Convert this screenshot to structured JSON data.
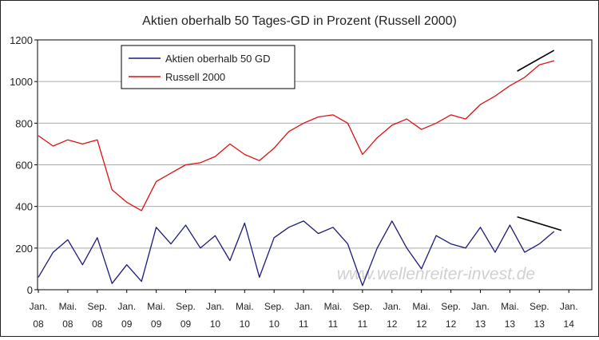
{
  "chart_data": {
    "type": "line",
    "title": "Aktien oberhalb 50 Tages-GD in Prozent (Russell 2000)",
    "xlabel": "",
    "ylabel": "",
    "ylim": [
      0,
      1200
    ],
    "yticks": [
      0,
      200,
      400,
      600,
      800,
      1000,
      1200
    ],
    "grid": true,
    "legend_position": "top-left",
    "watermark": "www.wellenreiter-invest.de",
    "x_ticks": [
      {
        "month": "Jan.",
        "year": "08"
      },
      {
        "month": "Mai.",
        "year": "08"
      },
      {
        "month": "Sep.",
        "year": "08"
      },
      {
        "month": "Jan.",
        "year": "09"
      },
      {
        "month": "Mai.",
        "year": "09"
      },
      {
        "month": "Sep.",
        "year": "09"
      },
      {
        "month": "Jan.",
        "year": "10"
      },
      {
        "month": "Mai.",
        "year": "10"
      },
      {
        "month": "Sep.",
        "year": "10"
      },
      {
        "month": "Jan.",
        "year": "11"
      },
      {
        "month": "Mai.",
        "year": "11"
      },
      {
        "month": "Sep.",
        "year": "11"
      },
      {
        "month": "Jan.",
        "year": "12"
      },
      {
        "month": "Mai.",
        "year": "12"
      },
      {
        "month": "Sep.",
        "year": "12"
      },
      {
        "month": "Jan.",
        "year": "13"
      },
      {
        "month": "Mai.",
        "year": "13"
      },
      {
        "month": "Sep.",
        "year": "13"
      },
      {
        "month": "Jan.",
        "year": "14"
      }
    ],
    "x": [
      "2008-01",
      "2008-03",
      "2008-05",
      "2008-07",
      "2008-09",
      "2008-11",
      "2009-01",
      "2009-03",
      "2009-05",
      "2009-07",
      "2009-09",
      "2009-11",
      "2010-01",
      "2010-03",
      "2010-05",
      "2010-07",
      "2010-09",
      "2010-11",
      "2011-01",
      "2011-03",
      "2011-05",
      "2011-07",
      "2011-09",
      "2011-11",
      "2012-01",
      "2012-03",
      "2012-05",
      "2012-07",
      "2012-09",
      "2012-11",
      "2013-01",
      "2013-03",
      "2013-05",
      "2013-07",
      "2013-09",
      "2013-11"
    ],
    "series": [
      {
        "name": "Aktien oberhalb 50 GD",
        "color": "#1a1a7a",
        "values": [
          60,
          180,
          240,
          120,
          250,
          30,
          120,
          40,
          300,
          220,
          310,
          200,
          260,
          140,
          320,
          60,
          250,
          300,
          330,
          270,
          300,
          220,
          20,
          200,
          330,
          200,
          100,
          260,
          220,
          200,
          300,
          180,
          310,
          180,
          220,
          280
        ]
      },
      {
        "name": "Russell 2000",
        "color": "#dd1111",
        "values": [
          740,
          690,
          720,
          700,
          720,
          480,
          420,
          380,
          520,
          560,
          600,
          610,
          640,
          700,
          650,
          620,
          680,
          760,
          800,
          830,
          840,
          800,
          650,
          730,
          790,
          820,
          770,
          800,
          840,
          820,
          890,
          930,
          980,
          1020,
          1080,
          1100
        ]
      }
    ],
    "trend_lines": [
      {
        "series": "Russell 2000",
        "color": "#000000",
        "from": {
          "x": "2013-06",
          "y": 1050
        },
        "to": {
          "x": "2013-11",
          "y": 1150
        }
      },
      {
        "series": "Aktien oberhalb 50 GD",
        "color": "#000000",
        "from": {
          "x": "2013-06",
          "y": 350
        },
        "to": {
          "x": "2013-12",
          "y": 285
        }
      }
    ]
  }
}
